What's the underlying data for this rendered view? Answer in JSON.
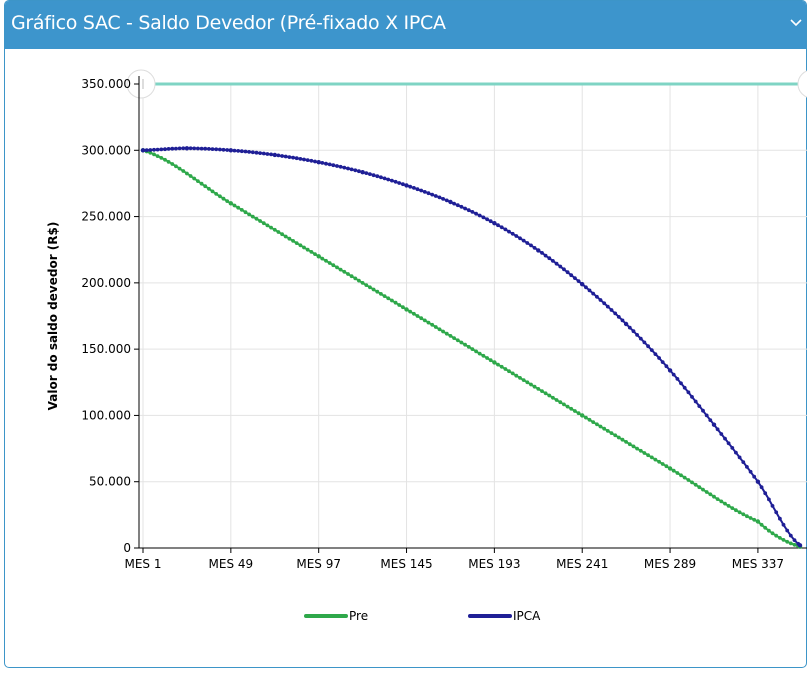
{
  "panel": {
    "title": "Gráfico SAC - Saldo Devedor (Pré-fixado X IPCA",
    "collapse_icon": "chevron-down-icon"
  },
  "colors": {
    "header": "#3d95cc",
    "pre": "#2ea84a",
    "ipca": "#1f1f96",
    "range_line": "#7fd4c4"
  },
  "chart_data": {
    "type": "line",
    "title": "",
    "xlabel": "",
    "ylabel": "Valor do saldo devedor (R$)",
    "x_start_month": 1,
    "x_end_month": 360,
    "x_tick_labels": [
      "MES 1",
      "MES 49",
      "MES 97",
      "MES 145",
      "MES 193",
      "MES 241",
      "MES 289",
      "MES 337"
    ],
    "y_tick_labels": [
      "0",
      "50.000",
      "100.000",
      "150.000",
      "200.000",
      "250.000",
      "300.000",
      "350.000"
    ],
    "ylim": [
      0,
      350000
    ],
    "grid": true,
    "legend_position": "bottom",
    "series": [
      {
        "name": "Pre",
        "x": [
          "MES 1",
          "MES 49",
          "MES 97",
          "MES 145",
          "MES 193",
          "MES 241",
          "MES 289",
          "MES 337",
          "MES 360"
        ],
        "values": [
          300000,
          260000,
          220000,
          180000,
          140000,
          100000,
          60000,
          20000,
          1000
        ]
      },
      {
        "name": "IPCA",
        "x": [
          "MES 1",
          "MES 25",
          "MES 49",
          "MES 73",
          "MES 97",
          "MES 121",
          "MES 145",
          "MES 169",
          "MES 193",
          "MES 217",
          "MES 241",
          "MES 265",
          "MES 289",
          "MES 313",
          "MES 337",
          "MES 360"
        ],
        "values": [
          300000,
          301500,
          300000,
          296500,
          291000,
          283500,
          273500,
          261000,
          245000,
          224500,
          199000,
          169000,
          134000,
          93000,
          50000,
          2000
        ]
      }
    ]
  }
}
